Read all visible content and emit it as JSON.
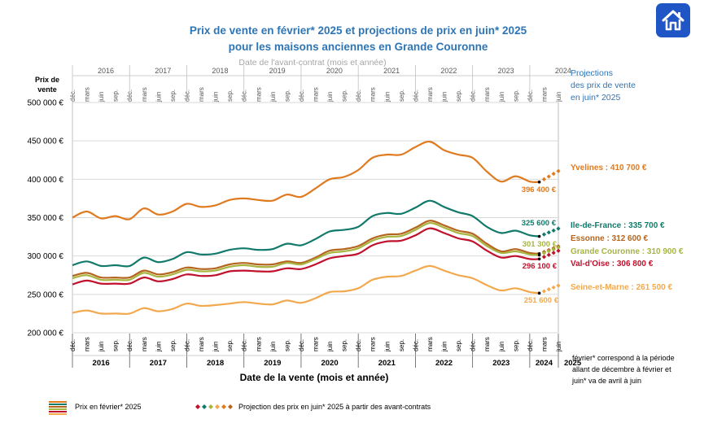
{
  "header": {
    "title_line1": "Prix de vente en février* 2025 et projections de prix en juin* 2025",
    "title_line2": "pour les maisons anciennes en Grande Couronne",
    "home_icon": "home-icon"
  },
  "chart_data": {
    "type": "line",
    "title": "Prix de vente en février* 2025 et projections de prix en juin* 2025 pour les maisons anciennes en Grande Couronne",
    "ylabel_line1": "Prix de",
    "ylabel_line2": "vente",
    "xlabel": "Date de la vente (mois et année)",
    "top_axis_label": "Date de l'avant-contrat (mois et année)",
    "ylim": [
      200000,
      500000
    ],
    "yticks": [
      {
        "value": 200000,
        "label": "200 000 €"
      },
      {
        "value": 250000,
        "label": "250 000 €"
      },
      {
        "value": 300000,
        "label": "300 000 €"
      },
      {
        "value": 350000,
        "label": "350 000 €"
      },
      {
        "value": 400000,
        "label": "400 000 €"
      },
      {
        "value": 450000,
        "label": "450 000 €"
      },
      {
        "value": 500000,
        "label": "500 000 €"
      }
    ],
    "x_start": "2015-12",
    "x_end": "2025-06",
    "month_labels": {
      "3": "mars",
      "6": "juin",
      "9": "sep.",
      "12": "déc."
    },
    "bottom_years": [
      "2016",
      "2017",
      "2018",
      "2019",
      "2020",
      "2021",
      "2022",
      "2023",
      "2024",
      "2025"
    ],
    "top_years": [
      "2016",
      "2017",
      "2018",
      "2019",
      "2020",
      "2021",
      "2022",
      "2023",
      "2024"
    ],
    "series": [
      {
        "name": "Yvelines",
        "color": "#e07a1f",
        "label": "Yvelines : 410 700 €",
        "feb_label": "396 400 €",
        "anchors": [
          [
            0,
            350000
          ],
          [
            3,
            358000
          ],
          [
            6,
            349000
          ],
          [
            9,
            352000
          ],
          [
            12,
            348000
          ],
          [
            15,
            362000
          ],
          [
            18,
            354000
          ],
          [
            21,
            358000
          ],
          [
            24,
            368000
          ],
          [
            27,
            364000
          ],
          [
            30,
            366000
          ],
          [
            33,
            373000
          ],
          [
            36,
            375000
          ],
          [
            39,
            373000
          ],
          [
            42,
            372000
          ],
          [
            45,
            380000
          ],
          [
            48,
            377000
          ],
          [
            51,
            388000
          ],
          [
            54,
            400000
          ],
          [
            57,
            403000
          ],
          [
            60,
            412000
          ],
          [
            63,
            428000
          ],
          [
            66,
            432000
          ],
          [
            69,
            432000
          ],
          [
            72,
            442000
          ],
          [
            75,
            449000
          ],
          [
            78,
            438000
          ],
          [
            81,
            432000
          ],
          [
            84,
            428000
          ],
          [
            87,
            410000
          ],
          [
            90,
            397000
          ],
          [
            93,
            404000
          ],
          [
            96,
            397000
          ],
          [
            98,
            396400
          ]
        ],
        "projection": [
          410700
        ]
      },
      {
        "name": "Ile-de-France",
        "color": "#127a6a",
        "label": "Ile-de-France : 335 700 €",
        "feb_label": "325 600 €",
        "anchors": [
          [
            0,
            288000
          ],
          [
            3,
            293000
          ],
          [
            6,
            287000
          ],
          [
            9,
            288000
          ],
          [
            12,
            287000
          ],
          [
            15,
            298000
          ],
          [
            18,
            292000
          ],
          [
            21,
            296000
          ],
          [
            24,
            305000
          ],
          [
            27,
            302000
          ],
          [
            30,
            303000
          ],
          [
            33,
            308000
          ],
          [
            36,
            310000
          ],
          [
            39,
            308000
          ],
          [
            42,
            309000
          ],
          [
            45,
            316000
          ],
          [
            48,
            314000
          ],
          [
            51,
            322000
          ],
          [
            54,
            332000
          ],
          [
            57,
            334000
          ],
          [
            60,
            338000
          ],
          [
            63,
            352000
          ],
          [
            66,
            356000
          ],
          [
            69,
            355000
          ],
          [
            72,
            363000
          ],
          [
            75,
            372000
          ],
          [
            78,
            364000
          ],
          [
            81,
            357000
          ],
          [
            84,
            352000
          ],
          [
            87,
            338000
          ],
          [
            90,
            330000
          ],
          [
            93,
            333000
          ],
          [
            96,
            327000
          ],
          [
            98,
            325600
          ]
        ],
        "projection": [
          335700
        ]
      },
      {
        "name": "Essonne",
        "color": "#b5651d",
        "label": "Essonne : 312 600 €",
        "feb_label": "",
        "anchors": [
          [
            0,
            274000
          ],
          [
            3,
            278000
          ],
          [
            6,
            272000
          ],
          [
            9,
            272000
          ],
          [
            12,
            272000
          ],
          [
            15,
            281000
          ],
          [
            18,
            276000
          ],
          [
            21,
            279000
          ],
          [
            24,
            285000
          ],
          [
            27,
            283000
          ],
          [
            30,
            284000
          ],
          [
            33,
            289000
          ],
          [
            36,
            291000
          ],
          [
            39,
            289000
          ],
          [
            42,
            289000
          ],
          [
            45,
            293000
          ],
          [
            48,
            291000
          ],
          [
            51,
            298000
          ],
          [
            54,
            307000
          ],
          [
            57,
            309000
          ],
          [
            60,
            313000
          ],
          [
            63,
            323000
          ],
          [
            66,
            328000
          ],
          [
            69,
            329000
          ],
          [
            72,
            337000
          ],
          [
            75,
            346000
          ],
          [
            78,
            340000
          ],
          [
            81,
            333000
          ],
          [
            84,
            329000
          ],
          [
            87,
            316000
          ],
          [
            90,
            306000
          ],
          [
            93,
            309000
          ],
          [
            96,
            304000
          ],
          [
            98,
            303000
          ]
        ],
        "projection": [
          312600
        ]
      },
      {
        "name": "Grande Couronne",
        "color": "#a8b540",
        "label": "Grande Couronne : 310 900 €",
        "feb_label": "301 300 €",
        "anchors": [
          [
            0,
            271000
          ],
          [
            3,
            275000
          ],
          [
            6,
            269000
          ],
          [
            9,
            269000
          ],
          [
            12,
            269000
          ],
          [
            15,
            278000
          ],
          [
            18,
            273000
          ],
          [
            21,
            276000
          ],
          [
            24,
            282000
          ],
          [
            27,
            280000
          ],
          [
            30,
            281000
          ],
          [
            33,
            286000
          ],
          [
            36,
            288000
          ],
          [
            39,
            286000
          ],
          [
            42,
            286000
          ],
          [
            45,
            291000
          ],
          [
            48,
            289000
          ],
          [
            51,
            296000
          ],
          [
            54,
            304000
          ],
          [
            57,
            306000
          ],
          [
            60,
            310000
          ],
          [
            63,
            320000
          ],
          [
            66,
            325000
          ],
          [
            69,
            326000
          ],
          [
            72,
            334000
          ],
          [
            75,
            343000
          ],
          [
            78,
            337000
          ],
          [
            81,
            330000
          ],
          [
            84,
            326000
          ],
          [
            87,
            313000
          ],
          [
            90,
            304000
          ],
          [
            93,
            306000
          ],
          [
            96,
            302000
          ],
          [
            98,
            301300
          ]
        ],
        "projection": [
          310900
        ]
      },
      {
        "name": "Val-d'Oise",
        "color": "#c0102c",
        "label": "Val-d'Oise : 306 800 €",
        "feb_label": "296 100 €",
        "anchors": [
          [
            0,
            263000
          ],
          [
            3,
            268000
          ],
          [
            6,
            264000
          ],
          [
            9,
            264000
          ],
          [
            12,
            264000
          ],
          [
            15,
            272000
          ],
          [
            18,
            267000
          ],
          [
            21,
            270000
          ],
          [
            24,
            276000
          ],
          [
            27,
            274000
          ],
          [
            30,
            275000
          ],
          [
            33,
            280000
          ],
          [
            36,
            281000
          ],
          [
            39,
            280000
          ],
          [
            42,
            280000
          ],
          [
            45,
            284000
          ],
          [
            48,
            283000
          ],
          [
            51,
            289000
          ],
          [
            54,
            297000
          ],
          [
            57,
            300000
          ],
          [
            60,
            303000
          ],
          [
            63,
            314000
          ],
          [
            66,
            319000
          ],
          [
            69,
            320000
          ],
          [
            72,
            327000
          ],
          [
            75,
            336000
          ],
          [
            78,
            330000
          ],
          [
            81,
            323000
          ],
          [
            84,
            319000
          ],
          [
            87,
            307000
          ],
          [
            90,
            298000
          ],
          [
            93,
            300000
          ],
          [
            96,
            296000
          ],
          [
            98,
            296100
          ]
        ],
        "projection": [
          306800
        ]
      },
      {
        "name": "Seine-et-Marne",
        "color": "#f2a94e",
        "label": "Seine-et-Marne : 261 500 €",
        "feb_label": "251 600 €",
        "anchors": [
          [
            0,
            226000
          ],
          [
            3,
            229000
          ],
          [
            6,
            225000
          ],
          [
            9,
            225000
          ],
          [
            12,
            225000
          ],
          [
            15,
            232000
          ],
          [
            18,
            228000
          ],
          [
            21,
            231000
          ],
          [
            24,
            238000
          ],
          [
            27,
            235000
          ],
          [
            30,
            236000
          ],
          [
            33,
            238000
          ],
          [
            36,
            240000
          ],
          [
            39,
            238000
          ],
          [
            42,
            237000
          ],
          [
            45,
            242000
          ],
          [
            48,
            239000
          ],
          [
            51,
            245000
          ],
          [
            54,
            253000
          ],
          [
            57,
            254000
          ],
          [
            60,
            258000
          ],
          [
            63,
            269000
          ],
          [
            66,
            273000
          ],
          [
            69,
            274000
          ],
          [
            72,
            281000
          ],
          [
            75,
            287000
          ],
          [
            78,
            281000
          ],
          [
            81,
            275000
          ],
          [
            84,
            271000
          ],
          [
            87,
            262000
          ],
          [
            90,
            255000
          ],
          [
            93,
            258000
          ],
          [
            96,
            253000
          ],
          [
            98,
            251600
          ]
        ],
        "projection": [
          261500
        ]
      }
    ],
    "right_title": [
      "Projections",
      "des prix de vente",
      "en juin* 2025"
    ],
    "footnote": [
      "février* correspond à la période",
      "allant de décembre à février et",
      "juin* va de avril à juin"
    ],
    "legend_price": "Prix en février* 2025",
    "legend_projection": "Projection des prix en juin* 2025 à partir des avant-contrats"
  }
}
